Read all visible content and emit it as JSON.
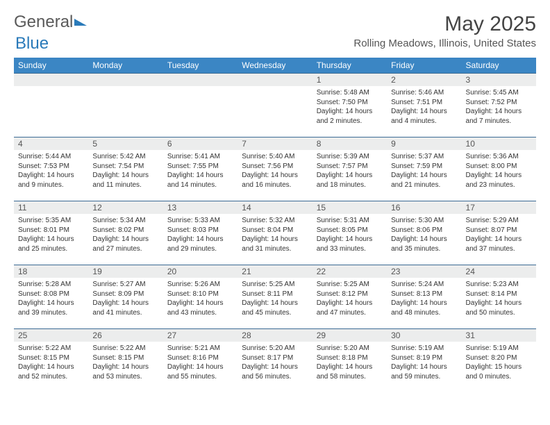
{
  "brand": {
    "part1": "General",
    "part2": "Blue"
  },
  "title": "May 2025",
  "location": "Rolling Meadows, Illinois, United States",
  "colors": {
    "header_bg": "#3b86c4",
    "header_text": "#ffffff",
    "daynum_bg": "#eceded",
    "border": "#3b6a94",
    "brand_gray": "#5a5a5a",
    "brand_blue": "#2a7ab9"
  },
  "dow": [
    "Sunday",
    "Monday",
    "Tuesday",
    "Wednesday",
    "Thursday",
    "Friday",
    "Saturday"
  ],
  "weeks": [
    [
      {
        "n": "",
        "sr": "",
        "ss": "",
        "dl": ""
      },
      {
        "n": "",
        "sr": "",
        "ss": "",
        "dl": ""
      },
      {
        "n": "",
        "sr": "",
        "ss": "",
        "dl": ""
      },
      {
        "n": "",
        "sr": "",
        "ss": "",
        "dl": ""
      },
      {
        "n": "1",
        "sr": "Sunrise: 5:48 AM",
        "ss": "Sunset: 7:50 PM",
        "dl": "Daylight: 14 hours and 2 minutes."
      },
      {
        "n": "2",
        "sr": "Sunrise: 5:46 AM",
        "ss": "Sunset: 7:51 PM",
        "dl": "Daylight: 14 hours and 4 minutes."
      },
      {
        "n": "3",
        "sr": "Sunrise: 5:45 AM",
        "ss": "Sunset: 7:52 PM",
        "dl": "Daylight: 14 hours and 7 minutes."
      }
    ],
    [
      {
        "n": "4",
        "sr": "Sunrise: 5:44 AM",
        "ss": "Sunset: 7:53 PM",
        "dl": "Daylight: 14 hours and 9 minutes."
      },
      {
        "n": "5",
        "sr": "Sunrise: 5:42 AM",
        "ss": "Sunset: 7:54 PM",
        "dl": "Daylight: 14 hours and 11 minutes."
      },
      {
        "n": "6",
        "sr": "Sunrise: 5:41 AM",
        "ss": "Sunset: 7:55 PM",
        "dl": "Daylight: 14 hours and 14 minutes."
      },
      {
        "n": "7",
        "sr": "Sunrise: 5:40 AM",
        "ss": "Sunset: 7:56 PM",
        "dl": "Daylight: 14 hours and 16 minutes."
      },
      {
        "n": "8",
        "sr": "Sunrise: 5:39 AM",
        "ss": "Sunset: 7:57 PM",
        "dl": "Daylight: 14 hours and 18 minutes."
      },
      {
        "n": "9",
        "sr": "Sunrise: 5:37 AM",
        "ss": "Sunset: 7:59 PM",
        "dl": "Daylight: 14 hours and 21 minutes."
      },
      {
        "n": "10",
        "sr": "Sunrise: 5:36 AM",
        "ss": "Sunset: 8:00 PM",
        "dl": "Daylight: 14 hours and 23 minutes."
      }
    ],
    [
      {
        "n": "11",
        "sr": "Sunrise: 5:35 AM",
        "ss": "Sunset: 8:01 PM",
        "dl": "Daylight: 14 hours and 25 minutes."
      },
      {
        "n": "12",
        "sr": "Sunrise: 5:34 AM",
        "ss": "Sunset: 8:02 PM",
        "dl": "Daylight: 14 hours and 27 minutes."
      },
      {
        "n": "13",
        "sr": "Sunrise: 5:33 AM",
        "ss": "Sunset: 8:03 PM",
        "dl": "Daylight: 14 hours and 29 minutes."
      },
      {
        "n": "14",
        "sr": "Sunrise: 5:32 AM",
        "ss": "Sunset: 8:04 PM",
        "dl": "Daylight: 14 hours and 31 minutes."
      },
      {
        "n": "15",
        "sr": "Sunrise: 5:31 AM",
        "ss": "Sunset: 8:05 PM",
        "dl": "Daylight: 14 hours and 33 minutes."
      },
      {
        "n": "16",
        "sr": "Sunrise: 5:30 AM",
        "ss": "Sunset: 8:06 PM",
        "dl": "Daylight: 14 hours and 35 minutes."
      },
      {
        "n": "17",
        "sr": "Sunrise: 5:29 AM",
        "ss": "Sunset: 8:07 PM",
        "dl": "Daylight: 14 hours and 37 minutes."
      }
    ],
    [
      {
        "n": "18",
        "sr": "Sunrise: 5:28 AM",
        "ss": "Sunset: 8:08 PM",
        "dl": "Daylight: 14 hours and 39 minutes."
      },
      {
        "n": "19",
        "sr": "Sunrise: 5:27 AM",
        "ss": "Sunset: 8:09 PM",
        "dl": "Daylight: 14 hours and 41 minutes."
      },
      {
        "n": "20",
        "sr": "Sunrise: 5:26 AM",
        "ss": "Sunset: 8:10 PM",
        "dl": "Daylight: 14 hours and 43 minutes."
      },
      {
        "n": "21",
        "sr": "Sunrise: 5:25 AM",
        "ss": "Sunset: 8:11 PM",
        "dl": "Daylight: 14 hours and 45 minutes."
      },
      {
        "n": "22",
        "sr": "Sunrise: 5:25 AM",
        "ss": "Sunset: 8:12 PM",
        "dl": "Daylight: 14 hours and 47 minutes."
      },
      {
        "n": "23",
        "sr": "Sunrise: 5:24 AM",
        "ss": "Sunset: 8:13 PM",
        "dl": "Daylight: 14 hours and 48 minutes."
      },
      {
        "n": "24",
        "sr": "Sunrise: 5:23 AM",
        "ss": "Sunset: 8:14 PM",
        "dl": "Daylight: 14 hours and 50 minutes."
      }
    ],
    [
      {
        "n": "25",
        "sr": "Sunrise: 5:22 AM",
        "ss": "Sunset: 8:15 PM",
        "dl": "Daylight: 14 hours and 52 minutes."
      },
      {
        "n": "26",
        "sr": "Sunrise: 5:22 AM",
        "ss": "Sunset: 8:15 PM",
        "dl": "Daylight: 14 hours and 53 minutes."
      },
      {
        "n": "27",
        "sr": "Sunrise: 5:21 AM",
        "ss": "Sunset: 8:16 PM",
        "dl": "Daylight: 14 hours and 55 minutes."
      },
      {
        "n": "28",
        "sr": "Sunrise: 5:20 AM",
        "ss": "Sunset: 8:17 PM",
        "dl": "Daylight: 14 hours and 56 minutes."
      },
      {
        "n": "29",
        "sr": "Sunrise: 5:20 AM",
        "ss": "Sunset: 8:18 PM",
        "dl": "Daylight: 14 hours and 58 minutes."
      },
      {
        "n": "30",
        "sr": "Sunrise: 5:19 AM",
        "ss": "Sunset: 8:19 PM",
        "dl": "Daylight: 14 hours and 59 minutes."
      },
      {
        "n": "31",
        "sr": "Sunrise: 5:19 AM",
        "ss": "Sunset: 8:20 PM",
        "dl": "Daylight: 15 hours and 0 minutes."
      }
    ]
  ]
}
